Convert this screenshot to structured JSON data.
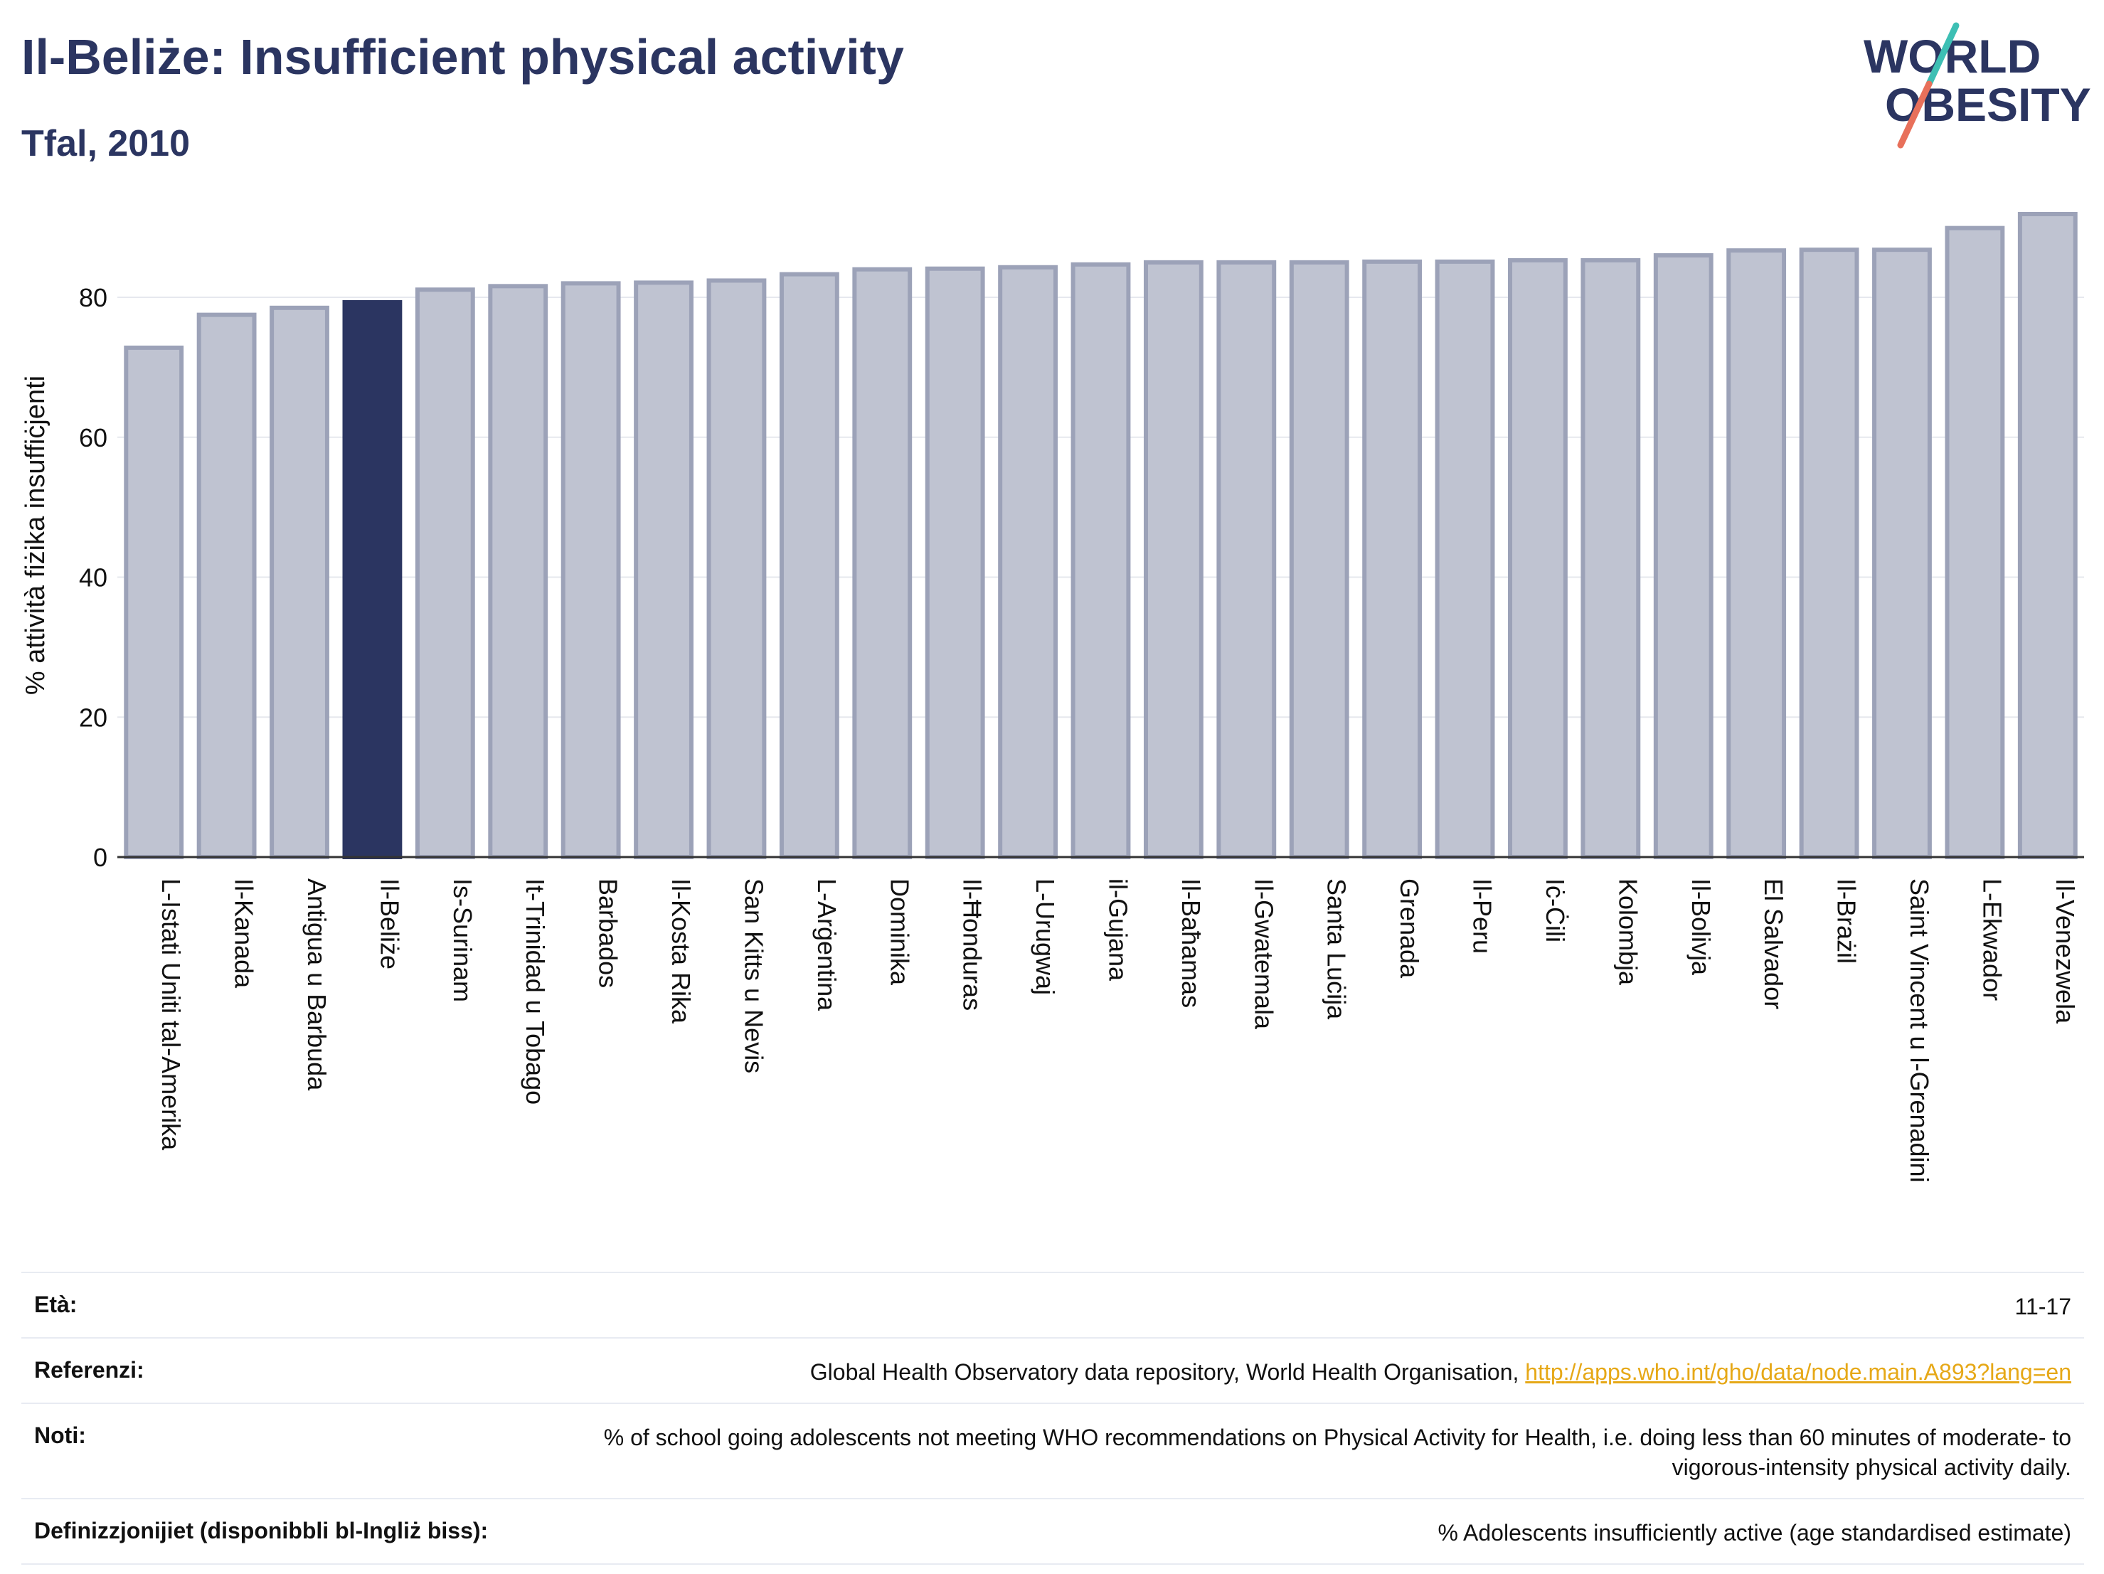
{
  "header": {
    "title": "Il-Beliże: Insufficient physical activity",
    "subtitle": "Tfal, 2010"
  },
  "logo": {
    "line1": "WORLD",
    "line2": "OBESITY",
    "colors": {
      "text": "#2b3561",
      "slash_top": "#3dbfb4",
      "slash_bottom": "#e8705a"
    }
  },
  "chart_data": {
    "type": "bar",
    "ylabel": "% attività fiżika insuffiċjenti",
    "ylim": [
      0,
      92
    ],
    "yticks": [
      0,
      20,
      40,
      60,
      80
    ],
    "grid": true,
    "highlight": "Il-Beliże",
    "colors": {
      "bar": "#bfc3d1",
      "bar_edge": "#9ca2b8",
      "highlight": "#2b3561",
      "grid": "#e6e8ee"
    },
    "categories": [
      "L-Istati Uniti tal-Amerika",
      "Il-Kanada",
      "Antigua u Barbuda",
      "Il-Beliże",
      "Is-Surinam",
      "It-Trinidad u Tobago",
      "Barbados",
      "Il-Kosta Rika",
      "San Kitts u Nevis",
      "L-Arġentina",
      "Dominika",
      "Il-Ħonduras",
      "L-Urugwaj",
      "il-Gujana",
      "Il-Baħamas",
      "Il-Gwatemala",
      "Santa Luċija",
      "Grenada",
      "Il-Peru",
      "Iċ-Ċili",
      "Kolombja",
      "Il-Bolivja",
      "El Salvador",
      "Il-Brażil",
      "Saint Vincent u l-Grenadini",
      "L-Ekwador",
      "Il-Venezwela"
    ],
    "values": [
      72.8,
      77.5,
      78.5,
      79.3,
      81.1,
      81.6,
      82.0,
      82.1,
      82.4,
      83.3,
      84.0,
      84.1,
      84.3,
      84.7,
      85.0,
      85.0,
      85.0,
      85.1,
      85.1,
      85.3,
      85.3,
      86.0,
      86.7,
      86.8,
      86.8,
      89.9,
      91.9
    ]
  },
  "info": {
    "age_label": "Età:",
    "age_value": "11-17",
    "ref_label": "Referenzi:",
    "ref_text": "Global Health Observatory data repository, World Health Organisation, ",
    "ref_link": "http://apps.who.int/gho/data/node.main.A893?lang=en",
    "notes_label": "Noti:",
    "notes_value": "% of school going adolescents not meeting WHO recommendations on Physical Activity for Health, i.e. doing less than 60 minutes of moderate- to vigorous-intensity physical activity daily.",
    "def_label": "Definizzjonijiet (disponibbli bl-Ingliż biss):",
    "def_value": "% Adolescents insufficiently active (age standardised estimate)"
  }
}
